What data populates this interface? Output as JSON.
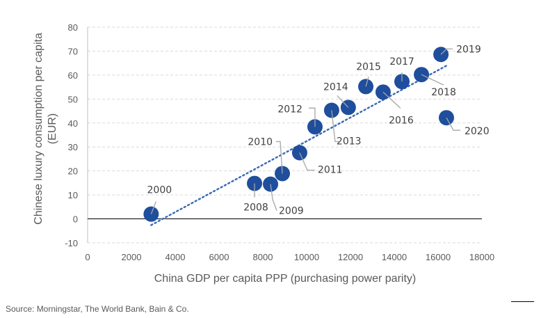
{
  "chart_data": {
    "type": "scatter",
    "title": "",
    "xlabel": "China GDP per capita PPP (purchasing power parity)",
    "ylabel_lines": [
      "Chinese luxury consumption per capita",
      "(EUR)"
    ],
    "xlim": [
      0,
      18000
    ],
    "ylim": [
      -10,
      80
    ],
    "xticks": [
      0,
      2000,
      4000,
      6000,
      8000,
      10000,
      12000,
      14000,
      16000,
      18000
    ],
    "yticks": [
      -10,
      0,
      10,
      20,
      30,
      40,
      50,
      60,
      70,
      80
    ],
    "grid": "horizontal-dashed",
    "marker_color": "#1f4e9c",
    "trendline": {
      "style": "dotted",
      "color": "#3a6cb5",
      "x": [
        2900,
        16400
      ],
      "y": [
        -2.6,
        64
      ]
    },
    "points": [
      {
        "label": "2000",
        "x": 2900,
        "y": 2.0
      },
      {
        "label": "2008",
        "x": 7620,
        "y": 14.8
      },
      {
        "label": "2009",
        "x": 8350,
        "y": 14.5
      },
      {
        "label": "2010",
        "x": 8890,
        "y": 18.9
      },
      {
        "label": "2011",
        "x": 9680,
        "y": 27.6
      },
      {
        "label": "2012",
        "x": 10380,
        "y": 38.4
      },
      {
        "label": "2013",
        "x": 11140,
        "y": 45.3
      },
      {
        "label": "2014",
        "x": 11900,
        "y": 46.5
      },
      {
        "label": "2015",
        "x": 12700,
        "y": 55.2
      },
      {
        "label": "2016",
        "x": 13490,
        "y": 52.9
      },
      {
        "label": "2017",
        "x": 14350,
        "y": 57.3
      },
      {
        "label": "2018",
        "x": 15240,
        "y": 60.2
      },
      {
        "label": "2019",
        "x": 16130,
        "y": 68.6
      },
      {
        "label": "2020",
        "x": 16380,
        "y": 42.2
      }
    ]
  },
  "source": "Source: Morningstar, The World Bank, Bain & Co."
}
